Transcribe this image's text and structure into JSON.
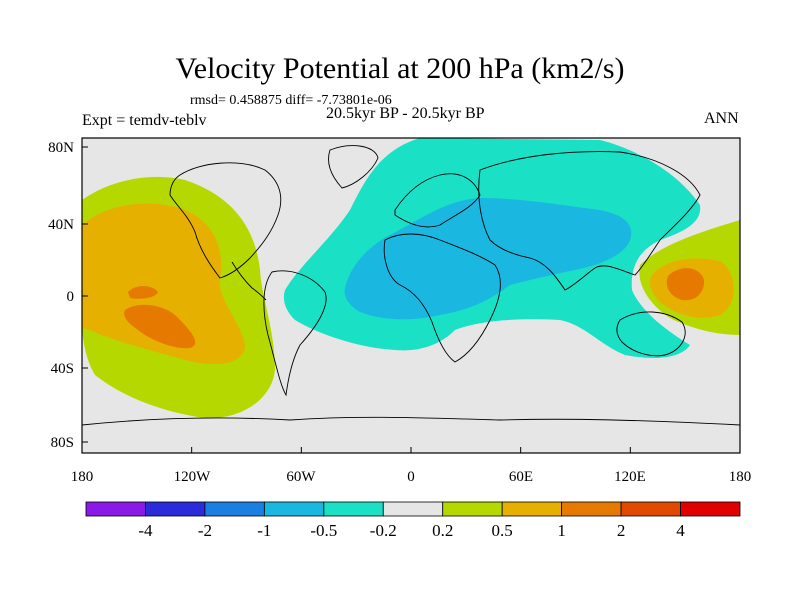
{
  "title": "Velocity Potential at 200 hPa (km2/s)",
  "stats_line": "rmsd= 0.458875  diff= -7.73801e-06",
  "experiment": "Expt = temdv-teblv",
  "period": "20.5kyr BP - 20.5kyr BP",
  "season": "ANN",
  "axes": {
    "y_labels": [
      "80N",
      "40N",
      "0",
      "40S",
      "80S"
    ],
    "x_labels": [
      "180",
      "120W",
      "60W",
      "0",
      "60E",
      "120E",
      "180"
    ]
  },
  "colorbar": {
    "colors": [
      "#8c1ae6",
      "#2b2bd9",
      "#1a7fe0",
      "#1ab8e0",
      "#1ae0c6",
      "#e6e6e6",
      "#b5d900",
      "#e6b000",
      "#e67a00",
      "#e04a00",
      "#e00000"
    ],
    "labels": [
      "-4",
      "-2",
      "-1",
      "-0.5",
      "-0.2",
      "0.2",
      "0.5",
      "1",
      "2",
      "4"
    ]
  },
  "field_colors": {
    "background": "#e6e6e6",
    "pos_weak": "#b5d900",
    "pos_mid": "#e6b000",
    "pos_strong": "#e67a00",
    "neg_weak": "#1ae0c6",
    "neg_mid": "#1ab8e0"
  }
}
